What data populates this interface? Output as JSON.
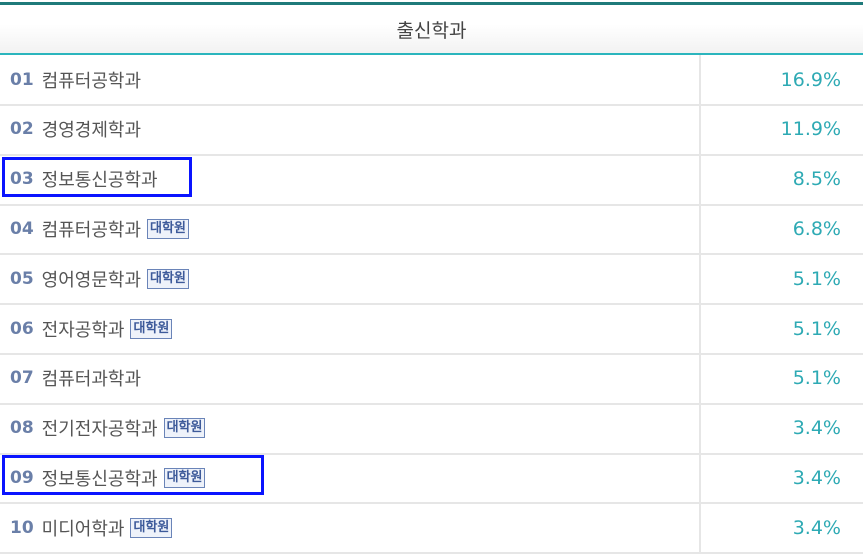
{
  "header": {
    "title": "출신학과"
  },
  "rows": [
    {
      "rank": "01",
      "name": "컴퓨터공학과",
      "badge": "",
      "percent": "16.9%"
    },
    {
      "rank": "02",
      "name": "경영경제학과",
      "badge": "",
      "percent": "11.9%"
    },
    {
      "rank": "03",
      "name": "정보통신공학과",
      "badge": "",
      "percent": "8.5%",
      "highlighted": true
    },
    {
      "rank": "04",
      "name": "컴퓨터공학과",
      "badge": "대학원",
      "percent": "6.8%"
    },
    {
      "rank": "05",
      "name": "영어영문학과",
      "badge": "대학원",
      "percent": "5.1%"
    },
    {
      "rank": "06",
      "name": "전자공학과",
      "badge": "대학원",
      "percent": "5.1%"
    },
    {
      "rank": "07",
      "name": "컴퓨터과학과",
      "badge": "",
      "percent": "5.1%"
    },
    {
      "rank": "08",
      "name": "전기전자공학과",
      "badge": "대학원",
      "percent": "3.4%"
    },
    {
      "rank": "09",
      "name": "정보통신공학과",
      "badge": "대학원",
      "percent": "3.4%",
      "highlighted": true
    },
    {
      "rank": "10",
      "name": "미디어학과",
      "badge": "대학원",
      "percent": "3.4%"
    }
  ],
  "colors": {
    "accent": "#2bb5bd",
    "top_border": "#1f7a7a",
    "highlight": "#0a14ff",
    "rank": "#6a7fa8"
  }
}
